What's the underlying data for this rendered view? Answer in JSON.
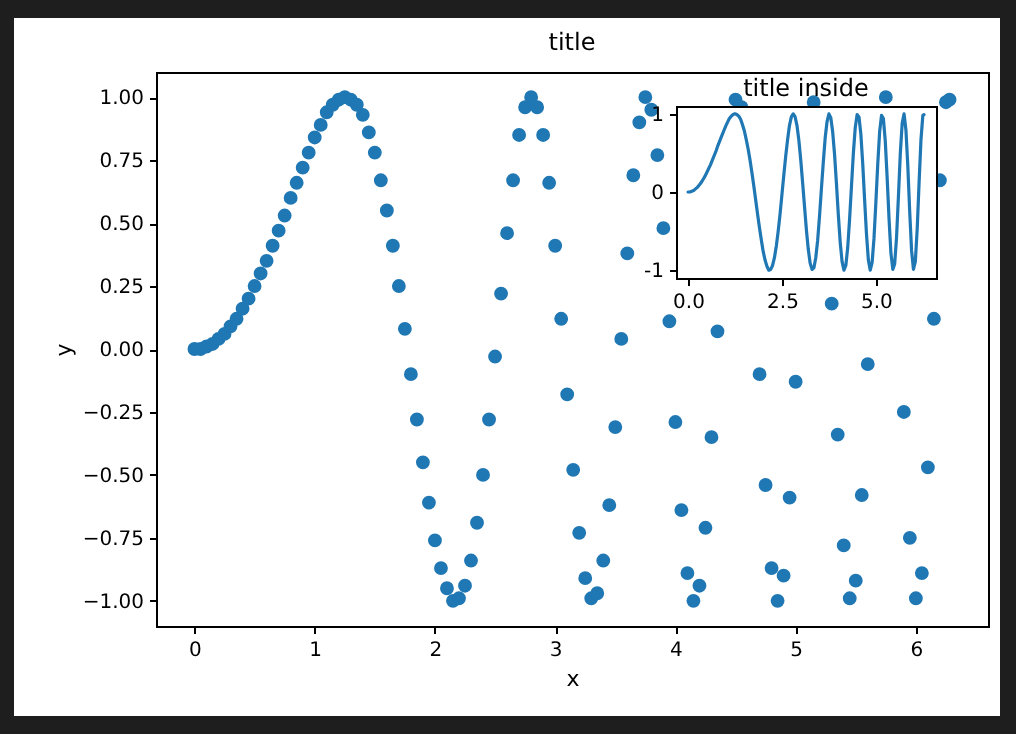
{
  "chart_data": [
    {
      "type": "scatter",
      "title": "title",
      "xlabel": "x",
      "ylabel": "y",
      "marker": "circle",
      "xlim": [
        -0.32,
        6.6
      ],
      "xticks": [
        0,
        1,
        2,
        3,
        4,
        5,
        6
      ],
      "ylim": [
        -1.1,
        1.1
      ],
      "yticks": [
        {
          "value": -1,
          "label": "−1.00"
        },
        {
          "value": -0.75,
          "label": "−0.75"
        },
        {
          "value": -0.5,
          "label": "−0.50"
        },
        {
          "value": -0.25,
          "label": "−0.25"
        },
        {
          "value": 0,
          "label": "0.00"
        },
        {
          "value": 0.25,
          "label": "0.25"
        },
        {
          "value": 0.5,
          "label": "0.50"
        },
        {
          "value": 0.75,
          "label": "0.75"
        },
        {
          "value": 1,
          "label": "1.00"
        }
      ],
      "x": [
        0,
        0.05,
        0.1,
        0.15,
        0.2,
        0.25,
        0.3,
        0.35,
        0.4,
        0.45,
        0.5,
        0.55,
        0.6,
        0.65,
        0.7,
        0.75,
        0.8,
        0.85,
        0.9,
        0.95,
        1,
        1.05,
        1.1,
        1.15,
        1.2,
        1.25,
        1.3,
        1.35,
        1.4,
        1.45,
        1.5,
        1.55,
        1.6,
        1.65,
        1.7,
        1.75,
        1.8,
        1.85,
        1.9,
        1.95,
        2,
        2.05,
        2.1,
        2.15,
        2.2,
        2.25,
        2.3,
        2.35,
        2.4,
        2.45,
        2.5,
        2.55,
        2.6,
        2.65,
        2.7,
        2.75,
        2.8,
        2.85,
        2.9,
        2.95,
        3,
        3.05,
        3.1,
        3.15,
        3.2,
        3.25,
        3.3,
        3.35,
        3.4,
        3.45,
        3.5,
        3.55,
        3.6,
        3.65,
        3.7,
        3.75,
        3.8,
        3.85,
        3.9,
        3.95,
        4,
        4.05,
        4.1,
        4.15,
        4.2,
        4.25,
        4.3,
        4.35,
        4.4,
        4.45,
        4.5,
        4.55,
        4.6,
        4.65,
        4.7,
        4.75,
        4.8,
        4.85,
        4.9,
        4.95,
        5,
        5.05,
        5.1,
        5.15,
        5.2,
        5.25,
        5.3,
        5.35,
        5.4,
        5.45,
        5.5,
        5.55,
        5.6,
        5.65,
        5.7,
        5.75,
        5.8,
        5.85,
        5.9,
        5.95,
        6,
        6.05,
        6.1,
        6.15,
        6.2,
        6.25,
        6.28
      ],
      "series": [
        {
          "color": "#1f77b4",
          "values": [
            0,
            0,
            0.01,
            0.02,
            0.04,
            0.06,
            0.09,
            0.12,
            0.16,
            0.2,
            0.25,
            0.3,
            0.35,
            0.41,
            0.47,
            0.53,
            0.6,
            0.66,
            0.72,
            0.78,
            0.84,
            0.89,
            0.94,
            0.97,
            0.99,
            1,
            0.99,
            0.97,
            0.93,
            0.86,
            0.78,
            0.67,
            0.55,
            0.41,
            0.25,
            0.08,
            -0.1,
            -0.28,
            -0.45,
            -0.61,
            -0.76,
            -0.87,
            -0.95,
            -1,
            -0.99,
            -0.94,
            -0.84,
            -0.69,
            -0.5,
            -0.28,
            -0.03,
            0.22,
            0.46,
            0.67,
            0.85,
            0.96,
            1,
            0.96,
            0.85,
            0.66,
            0.41,
            0.12,
            -0.18,
            -0.48,
            -0.73,
            -0.91,
            -0.99,
            -0.97,
            -0.84,
            -0.62,
            -0.31,
            0.04,
            0.38,
            0.69,
            0.9,
            1,
            0.95,
            0.77,
            0.48,
            0.11,
            -0.29,
            -0.64,
            -0.89,
            -1,
            -0.94,
            -0.71,
            -0.35,
            0.07,
            null,
            null,
            0.99,
            0.96,
            null,
            null,
            -0.1,
            -0.54,
            -0.87,
            -1,
            -0.9,
            -0.59,
            -0.13,
            null,
            null,
            0.98,
            null,
            null,
            0.18,
            -0.34,
            -0.78,
            -0.99,
            -0.92,
            -0.58,
            -0.06,
            null,
            null,
            1,
            null,
            null,
            -0.25,
            -0.75,
            -0.99,
            -0.89,
            -0.47,
            0.12,
            0.67,
            0.98,
            0.99
          ]
        }
      ]
    },
    {
      "type": "line",
      "title": "title inside",
      "xlim": [
        -0.32,
        6.6
      ],
      "xticks": [
        {
          "value": 0,
          "label": "0.0"
        },
        {
          "value": 2.5,
          "label": "2.5"
        },
        {
          "value": 5,
          "label": "5.0"
        }
      ],
      "ylim": [
        -1.1,
        1.1
      ],
      "yticks": [
        -1,
        0,
        1
      ],
      "x": [
        0,
        0.05,
        0.1,
        0.15,
        0.2,
        0.25,
        0.3,
        0.35,
        0.4,
        0.45,
        0.5,
        0.55,
        0.6,
        0.65,
        0.7,
        0.75,
        0.8,
        0.85,
        0.9,
        0.95,
        1,
        1.05,
        1.1,
        1.15,
        1.2,
        1.25,
        1.3,
        1.35,
        1.4,
        1.45,
        1.5,
        1.55,
        1.6,
        1.65,
        1.7,
        1.75,
        1.8,
        1.85,
        1.9,
        1.95,
        2,
        2.05,
        2.1,
        2.15,
        2.2,
        2.25,
        2.3,
        2.35,
        2.4,
        2.45,
        2.5,
        2.55,
        2.6,
        2.65,
        2.7,
        2.75,
        2.8,
        2.85,
        2.9,
        2.95,
        3,
        3.05,
        3.1,
        3.15,
        3.2,
        3.25,
        3.3,
        3.35,
        3.4,
        3.45,
        3.5,
        3.55,
        3.6,
        3.65,
        3.7,
        3.75,
        3.8,
        3.85,
        3.9,
        3.95,
        4,
        4.05,
        4.1,
        4.15,
        4.2,
        4.25,
        4.3,
        4.35,
        4.4,
        4.45,
        4.5,
        4.55,
        4.6,
        4.65,
        4.7,
        4.75,
        4.8,
        4.85,
        4.9,
        4.95,
        5,
        5.05,
        5.1,
        5.15,
        5.2,
        5.25,
        5.3,
        5.35,
        5.4,
        5.45,
        5.5,
        5.55,
        5.6,
        5.65,
        5.7,
        5.75,
        5.8,
        5.85,
        5.9,
        5.95,
        6,
        6.05,
        6.1,
        6.15,
        6.2,
        6.25,
        6.28
      ],
      "series": [
        {
          "color": "#1f77b4",
          "values": [
            0,
            0,
            0.01,
            0.02,
            0.04,
            0.06,
            0.09,
            0.12,
            0.16,
            0.2,
            0.25,
            0.3,
            0.35,
            0.41,
            0.47,
            0.53,
            0.6,
            0.66,
            0.72,
            0.78,
            0.84,
            0.89,
            0.94,
            0.97,
            0.99,
            1,
            0.99,
            0.97,
            0.93,
            0.86,
            0.78,
            0.67,
            0.55,
            0.41,
            0.25,
            0.08,
            -0.1,
            -0.28,
            -0.45,
            -0.61,
            -0.76,
            -0.87,
            -0.95,
            -1,
            -0.99,
            -0.94,
            -0.84,
            -0.69,
            -0.5,
            -0.28,
            -0.03,
            0.22,
            0.46,
            0.67,
            0.85,
            0.96,
            1,
            0.96,
            0.85,
            0.66,
            0.41,
            0.12,
            -0.18,
            -0.48,
            -0.73,
            -0.91,
            -0.99,
            -0.97,
            -0.84,
            -0.62,
            -0.31,
            0.04,
            0.38,
            0.69,
            0.9,
            1,
            0.95,
            0.77,
            0.48,
            0.11,
            -0.29,
            -0.64,
            -0.89,
            -1,
            -0.94,
            -0.71,
            -0.35,
            0.07,
            0.49,
            0.82,
            0.99,
            0.96,
            0.74,
            0.36,
            -0.1,
            -0.54,
            -0.87,
            -1,
            -0.9,
            -0.59,
            -0.13,
            0.36,
            0.77,
            0.98,
            0.94,
            0.65,
            0.18,
            -0.34,
            -0.78,
            -0.99,
            -0.92,
            -0.58,
            -0.06,
            0.49,
            0.88,
            1,
            0.79,
            0.33,
            -0.25,
            -0.75,
            -0.99,
            -0.89,
            -0.47,
            0.12,
            0.67,
            0.98,
            0.99
          ]
        }
      ]
    }
  ]
}
